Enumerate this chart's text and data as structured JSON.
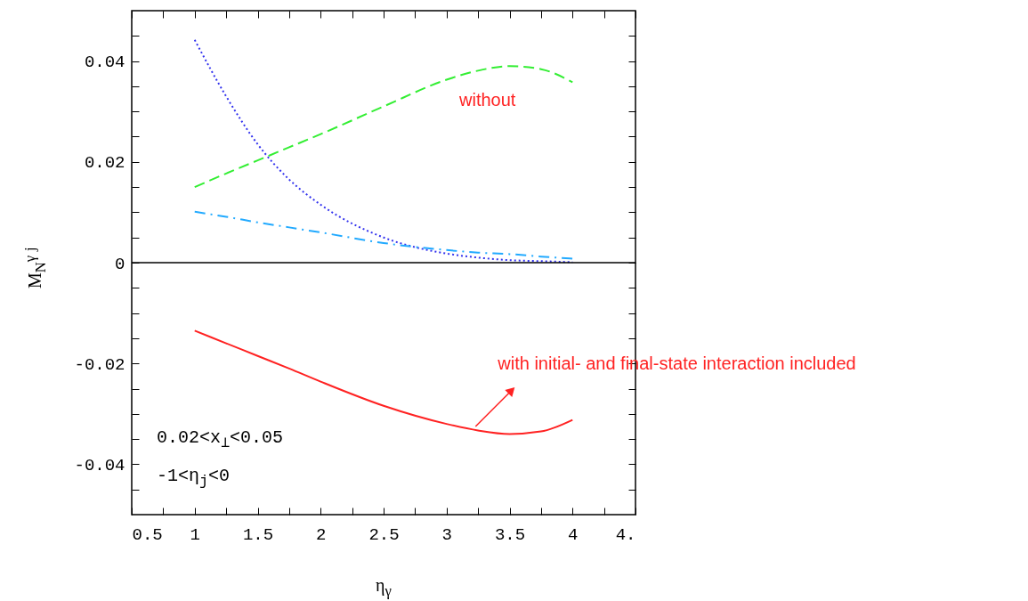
{
  "chart_data": {
    "type": "line",
    "xlabel": "η$_{γ}$",
    "ylabel": "M$_{N}$$^{γ}$ $^{j}$",
    "xlim": [
      0.5,
      4.5
    ],
    "ylim": [
      -0.05,
      0.05
    ],
    "xticks": [
      0.5,
      {
        "value": 0.75,
        "label": null
      },
      1,
      {
        "value": 1.25,
        "label": null
      },
      1.5,
      {
        "value": 1.75,
        "label": null
      },
      2,
      {
        "value": 2.25,
        "label": null
      },
      2.5,
      {
        "value": 2.75,
        "label": null
      },
      3,
      {
        "value": 3.25,
        "label": null
      },
      3.5,
      {
        "value": 3.75,
        "label": null
      },
      4,
      {
        "value": 4.25,
        "label": null
      },
      {
        "value": 4.5,
        "label": "4."
      }
    ],
    "yticks": [
      {
        "value": -0.045,
        "label": null
      },
      -0.04,
      {
        "value": -0.035,
        "label": null
      },
      {
        "value": -0.03,
        "label": null
      },
      {
        "value": -0.025,
        "label": null
      },
      -0.02,
      {
        "value": -0.015,
        "label": null
      },
      {
        "value": -0.01,
        "label": null
      },
      {
        "value": -0.005,
        "label": null
      },
      0,
      {
        "value": 0.005,
        "label": null
      },
      {
        "value": 0.01,
        "label": null
      },
      {
        "value": 0.015,
        "label": null
      },
      0.02,
      {
        "value": 0.025,
        "label": null
      },
      {
        "value": 0.03,
        "label": null
      },
      {
        "value": 0.035,
        "label": null
      },
      0.04,
      {
        "value": 0.045,
        "label": null
      }
    ],
    "x": [
      1,
      1.25,
      1.5,
      1.75,
      2,
      2.5,
      3,
      3.25,
      3.5,
      3.75,
      4
    ],
    "series": [
      {
        "color": "#33ee33",
        "line_style": "dashed",
        "values": [
          0.015,
          0.0177,
          0.0203,
          0.0229,
          0.0255,
          0.031,
          0.0363,
          0.0381,
          0.039,
          0.0384,
          0.0358
        ]
      },
      {
        "color": "#3333ee",
        "line_style": "dotted",
        "values": [
          0.0442,
          0.033,
          0.0235,
          0.0165,
          0.0115,
          0.005,
          0.0018,
          0.001,
          0.0005,
          0.0003,
          0.0001
        ]
      },
      {
        "color": "#22aaff",
        "line_style": "dashdot",
        "values": [
          0.0101,
          0.0091,
          0.008,
          0.007,
          0.006,
          0.0039,
          0.0025,
          0.002,
          0.0017,
          0.0012,
          0.0008
        ]
      },
      {
        "color": "#ff2222",
        "line_style": "solid",
        "values": [
          -0.0135,
          -0.016,
          -0.0185,
          -0.021,
          -0.0236,
          -0.0284,
          -0.032,
          -0.0333,
          -0.034,
          -0.0335,
          -0.0312
        ]
      }
    ],
    "ref_lines": [
      {
        "axis": "y",
        "value": 0,
        "color": "#000000"
      }
    ],
    "annotations": [
      "without",
      {
        "text": "with initial- and final-state interaction included",
        "x": 3.23,
        "y": -0.0325
      },
      "0.02<x$_{⊥}$<0.05",
      "-1<η$_{j}$<0"
    ],
    "grid": false,
    "marker": "none"
  }
}
